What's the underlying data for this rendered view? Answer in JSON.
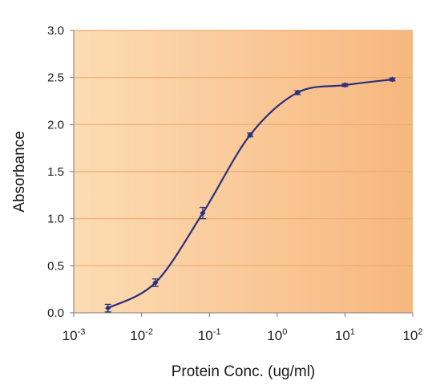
{
  "colors": {
    "plot_bg_left": "#fcdcb4",
    "plot_bg_right": "#f7b77e",
    "gridline": "#f0a96e",
    "series": "#2b2f7c",
    "axis": "#7a7a7a"
  },
  "chart_data": {
    "type": "scatter",
    "title": "",
    "xlabel": "Protein Conc. (ug/ml)",
    "ylabel": "Absorbance",
    "x_scale": "log",
    "xlim": [
      0.001,
      100
    ],
    "ylim": [
      0,
      3.0
    ],
    "grid": "horizontal",
    "x_ticks": [
      {
        "value": 0.001,
        "base": "10",
        "exp": "-3"
      },
      {
        "value": 0.01,
        "base": "10",
        "exp": "-2"
      },
      {
        "value": 0.1,
        "base": "10",
        "exp": "-1"
      },
      {
        "value": 1,
        "base": "10",
        "exp": "0"
      },
      {
        "value": 10,
        "base": "10",
        "exp": "1"
      },
      {
        "value": 100,
        "base": "10",
        "exp": "2"
      }
    ],
    "y_ticks": [
      {
        "value": 0.0,
        "label": "0.0"
      },
      {
        "value": 0.5,
        "label": "0.5"
      },
      {
        "value": 1.0,
        "label": "1.0"
      },
      {
        "value": 1.5,
        "label": "1.5"
      },
      {
        "value": 2.0,
        "label": "2.0"
      },
      {
        "value": 2.5,
        "label": "2.5"
      },
      {
        "value": 3.0,
        "label": "3.0"
      }
    ],
    "series": [
      {
        "x": [
          0.0032,
          0.016,
          0.08,
          0.4,
          2,
          10,
          50
        ],
        "y": [
          0.05,
          0.32,
          1.06,
          1.89,
          2.34,
          2.42,
          2.48
        ],
        "error": [
          0.04,
          0.04,
          0.06,
          0.02,
          0.02,
          0.015,
          0.015
        ],
        "curve": "smooth"
      }
    ]
  }
}
